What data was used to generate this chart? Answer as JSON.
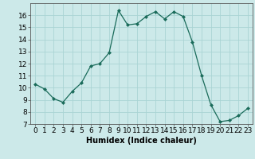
{
  "x": [
    0,
    1,
    2,
    3,
    4,
    5,
    6,
    7,
    8,
    9,
    10,
    11,
    12,
    13,
    14,
    15,
    16,
    17,
    18,
    19,
    20,
    21,
    22,
    23
  ],
  "y": [
    10.3,
    9.9,
    9.1,
    8.8,
    9.7,
    10.4,
    11.8,
    12.0,
    12.9,
    16.4,
    15.2,
    15.3,
    15.9,
    16.3,
    15.7,
    16.3,
    15.9,
    13.8,
    11.0,
    8.6,
    7.2,
    7.3,
    7.7,
    8.3
  ],
  "line_color": "#1a6b5a",
  "marker": "D",
  "marker_size": 2,
  "bg_color": "#cce9e9",
  "grid_color": "#aad4d4",
  "xlabel": "Humidex (Indice chaleur)",
  "ylim": [
    7,
    17
  ],
  "xlim": [
    -0.5,
    23.5
  ],
  "yticks": [
    7,
    8,
    9,
    10,
    11,
    12,
    13,
    14,
    15,
    16
  ],
  "xticks": [
    0,
    1,
    2,
    3,
    4,
    5,
    6,
    7,
    8,
    9,
    10,
    11,
    12,
    13,
    14,
    15,
    16,
    17,
    18,
    19,
    20,
    21,
    22,
    23
  ],
  "xlabel_fontsize": 7,
  "tick_fontsize": 6.5
}
